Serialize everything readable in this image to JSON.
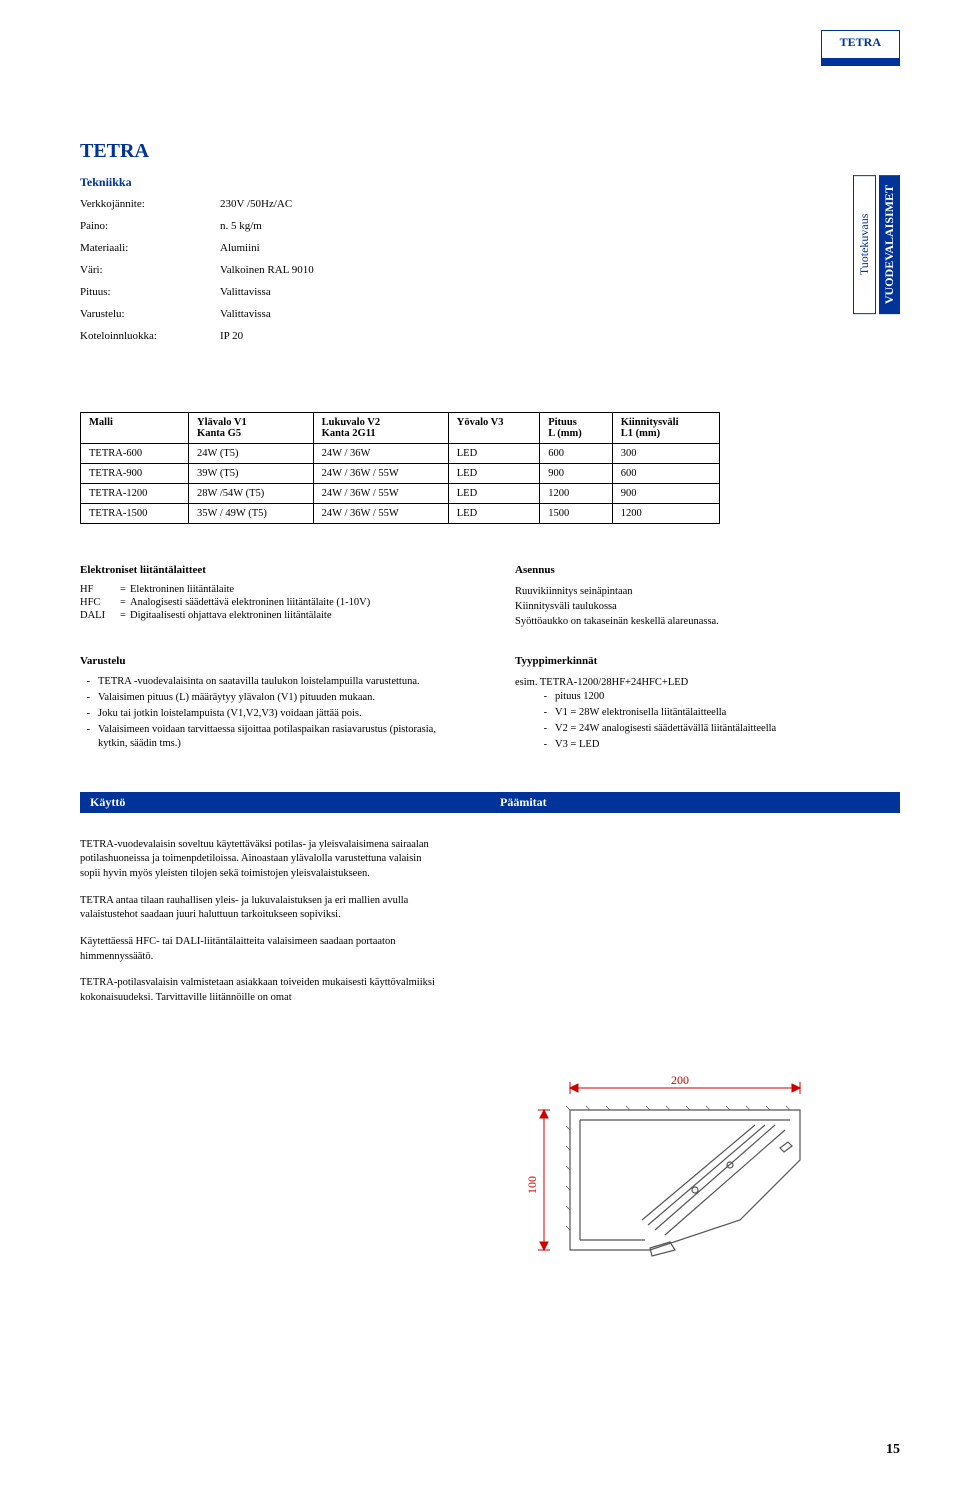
{
  "brand": "TETRA",
  "side_tab": {
    "left": "Tuotekuvaus",
    "right": "VUODEVALAISIMET"
  },
  "tech_heading": "Tekniikka",
  "specs": [
    {
      "label": "Verkkojännite:",
      "value": "230V /50Hz/AC"
    },
    {
      "label": "Paino:",
      "value": "n. 5 kg/m"
    },
    {
      "label": "Materiaali:",
      "value": "Alumiini"
    },
    {
      "label": "Väri:",
      "value": "Valkoinen RAL 9010"
    },
    {
      "label": "Pituus:",
      "value": "Valittavissa"
    },
    {
      "label": "Varustelu:",
      "value": "Valittavissa"
    },
    {
      "label": "Koteloinnluokka:",
      "value": "IP 20"
    }
  ],
  "table": {
    "headers": [
      "Malli",
      "Ylävalo V1\nKanta G5",
      "Lukuvalo V2\nKanta 2G11",
      "Yövalo V3",
      "Pituus\nL (mm)",
      "Kiinnitysväli\nL1 (mm)"
    ],
    "rows": [
      [
        "TETRA-600",
        "24W (T5)",
        "24W / 36W",
        "LED",
        "600",
        "300"
      ],
      [
        "TETRA-900",
        "39W (T5)",
        "24W / 36W / 55W",
        "LED",
        "900",
        "600"
      ],
      [
        "TETRA-1200",
        "28W /54W (T5)",
        "24W / 36W / 55W",
        "LED",
        "1200",
        "900"
      ],
      [
        "TETRA-1500",
        "35W / 49W (T5)",
        "24W / 36W / 55W",
        "LED",
        "1500",
        "1200"
      ]
    ]
  },
  "elek_head": "Elektroniset liitäntälaitteet",
  "elek_defs": [
    {
      "k": "HF",
      "v": "Elektroninen liitäntälaite"
    },
    {
      "k": "HFC",
      "v": "Analogisesti säädettävä elektroninen liitäntälaite (1-10V)"
    },
    {
      "k": "DALI",
      "v": "Digitaalisesti ohjattava elektroninen liitäntälaite"
    }
  ],
  "asennus_head": "Asennus",
  "asennus_lines": [
    "Ruuvikiinnitys seinäpintaan",
    "Kiinnitysväli taulukossa",
    "Syöttöaukko on takaseinän keskellä alareunassa."
  ],
  "varustelu_head": "Varustelu",
  "varustelu_items": [
    "TETRA -vuodevalaisinta on saatavilla taulukon loistelampuilla varustettuna.",
    "Valaisimen pituus (L) määräytyy ylävalon (V1) pituuden mukaan.",
    "Joku tai jotkin loistelampuista (V1,V2,V3) voidaan jättää pois.",
    "Valaisimeen voidaan tarvittaessa sijoittaa potilaspaikan rasiavarustus (pistorasia, kytkin, säädin tms.)"
  ],
  "tyyppi_head": "Tyyppimerkinnät",
  "tyyppi_lead": "esim. TETRA-1200/28HF+24HFC+LED",
  "tyyppi_items": [
    "pituus 1200",
    "V1 = 28W elektronisella liitäntälaitteella",
    "V2 = 24W analogisesti säädettävällä liitäntälaitteella",
    "V3 = LED"
  ],
  "bluebar": {
    "left": "Käyttö",
    "right": "Päämitat"
  },
  "body_paragraphs": [
    "TETRA-vuodevalaisin soveltuu käytettäväksi potilas- ja yleisvalaisimena sairaalan potilashuoneissa ja toimenpdetiloissa. Ainoastaan ylävalolla varustettuna valaisin sopii hyvin myös yleisten tilojen sekä toimistojen yleisvalaistukseen.",
    "TETRA antaa tilaan rauhallisen yleis- ja lukuvalaistuksen ja eri mallien avulla valaistustehot saadaan juuri haluttuun tarkoitukseen sopiviksi.",
    "Käytettäessä HFC- tai DALI-liitäntälaitteita valaisimeen saadaan portaaton himmennyssäätö.",
    "TETRA-potilasvalaisin valmistetaan asiakkaan toiveiden mukaisesti käyttövalmiiksi kokonaisuudeksi. Tarvittaville liitännöille on omat"
  ],
  "drawing_dims": {
    "width_label": "200",
    "height_label": "100"
  },
  "colors": {
    "brand_blue": "#003399",
    "dim_red": "#cc0000",
    "outline_gray": "#555555"
  },
  "page_number": "15"
}
